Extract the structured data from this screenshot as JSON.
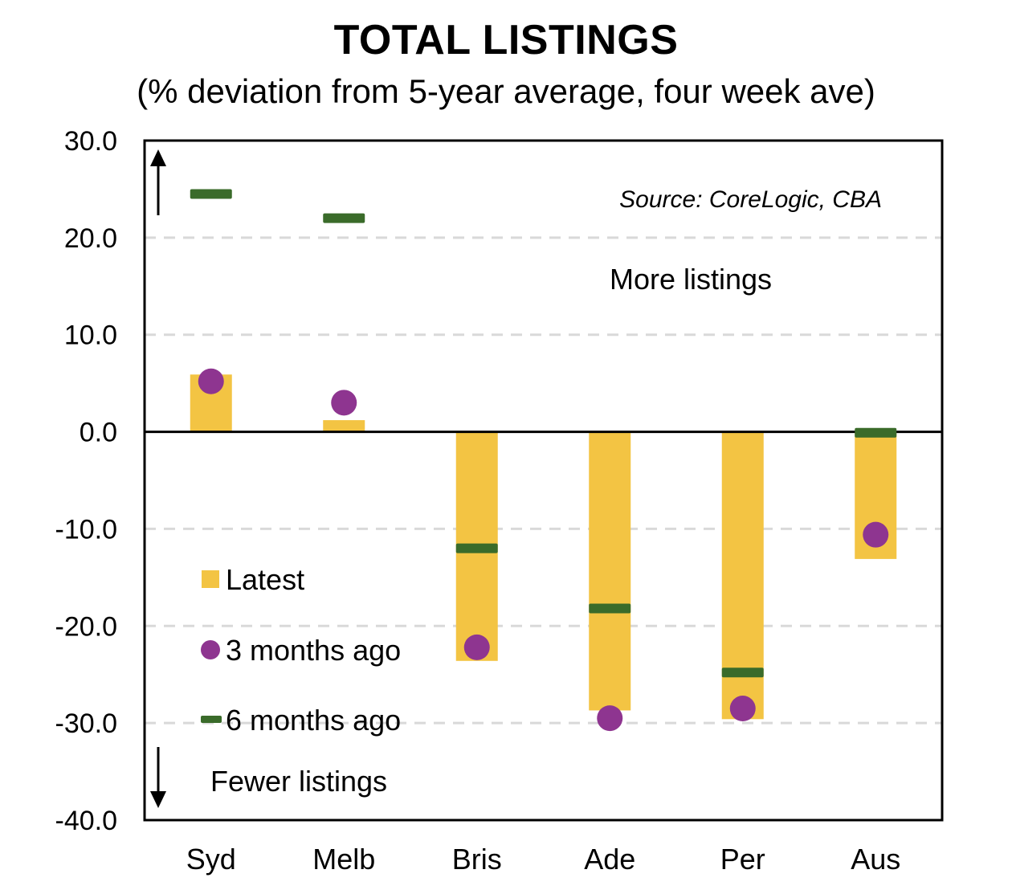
{
  "chart_data": {
    "type": "bar",
    "title": "TOTAL LISTINGS",
    "subtitle": "(% deviation from 5-year average, four week ave)",
    "categories": [
      "Syd",
      "Melb",
      "Bris",
      "Ade",
      "Per",
      "Aus"
    ],
    "series": [
      {
        "name": "Latest",
        "kind": "bar",
        "values": [
          5.9,
          1.2,
          -23.6,
          -28.7,
          -29.6,
          -13.1
        ]
      },
      {
        "name": "3 months ago",
        "kind": "dot",
        "values": [
          5.2,
          3.0,
          -22.2,
          -29.5,
          -28.5,
          -10.6
        ]
      },
      {
        "name": "6 months ago",
        "kind": "dash",
        "values": [
          24.5,
          22.0,
          -12.0,
          -18.2,
          -24.8,
          -0.1
        ]
      }
    ],
    "ylim": [
      -40,
      30
    ],
    "yticks": [
      30,
      20,
      10,
      0,
      -10,
      -20,
      -30,
      -40
    ],
    "ytick_labels": [
      "30.0",
      "20.0",
      "10.0",
      "0.0",
      "-10.0",
      "-20.0",
      "-30.0",
      "-40.0"
    ],
    "grid": "horizontal dashed",
    "legend_position": "left",
    "annotations": {
      "source": "Source: CoreLogic, CBA",
      "more": "More listings",
      "fewer": "Fewer listings"
    },
    "colors": {
      "bar": "#F3C443",
      "dot": "#8E3590",
      "dash": "#3A6B2A",
      "grid": "#D9D9D9"
    }
  }
}
